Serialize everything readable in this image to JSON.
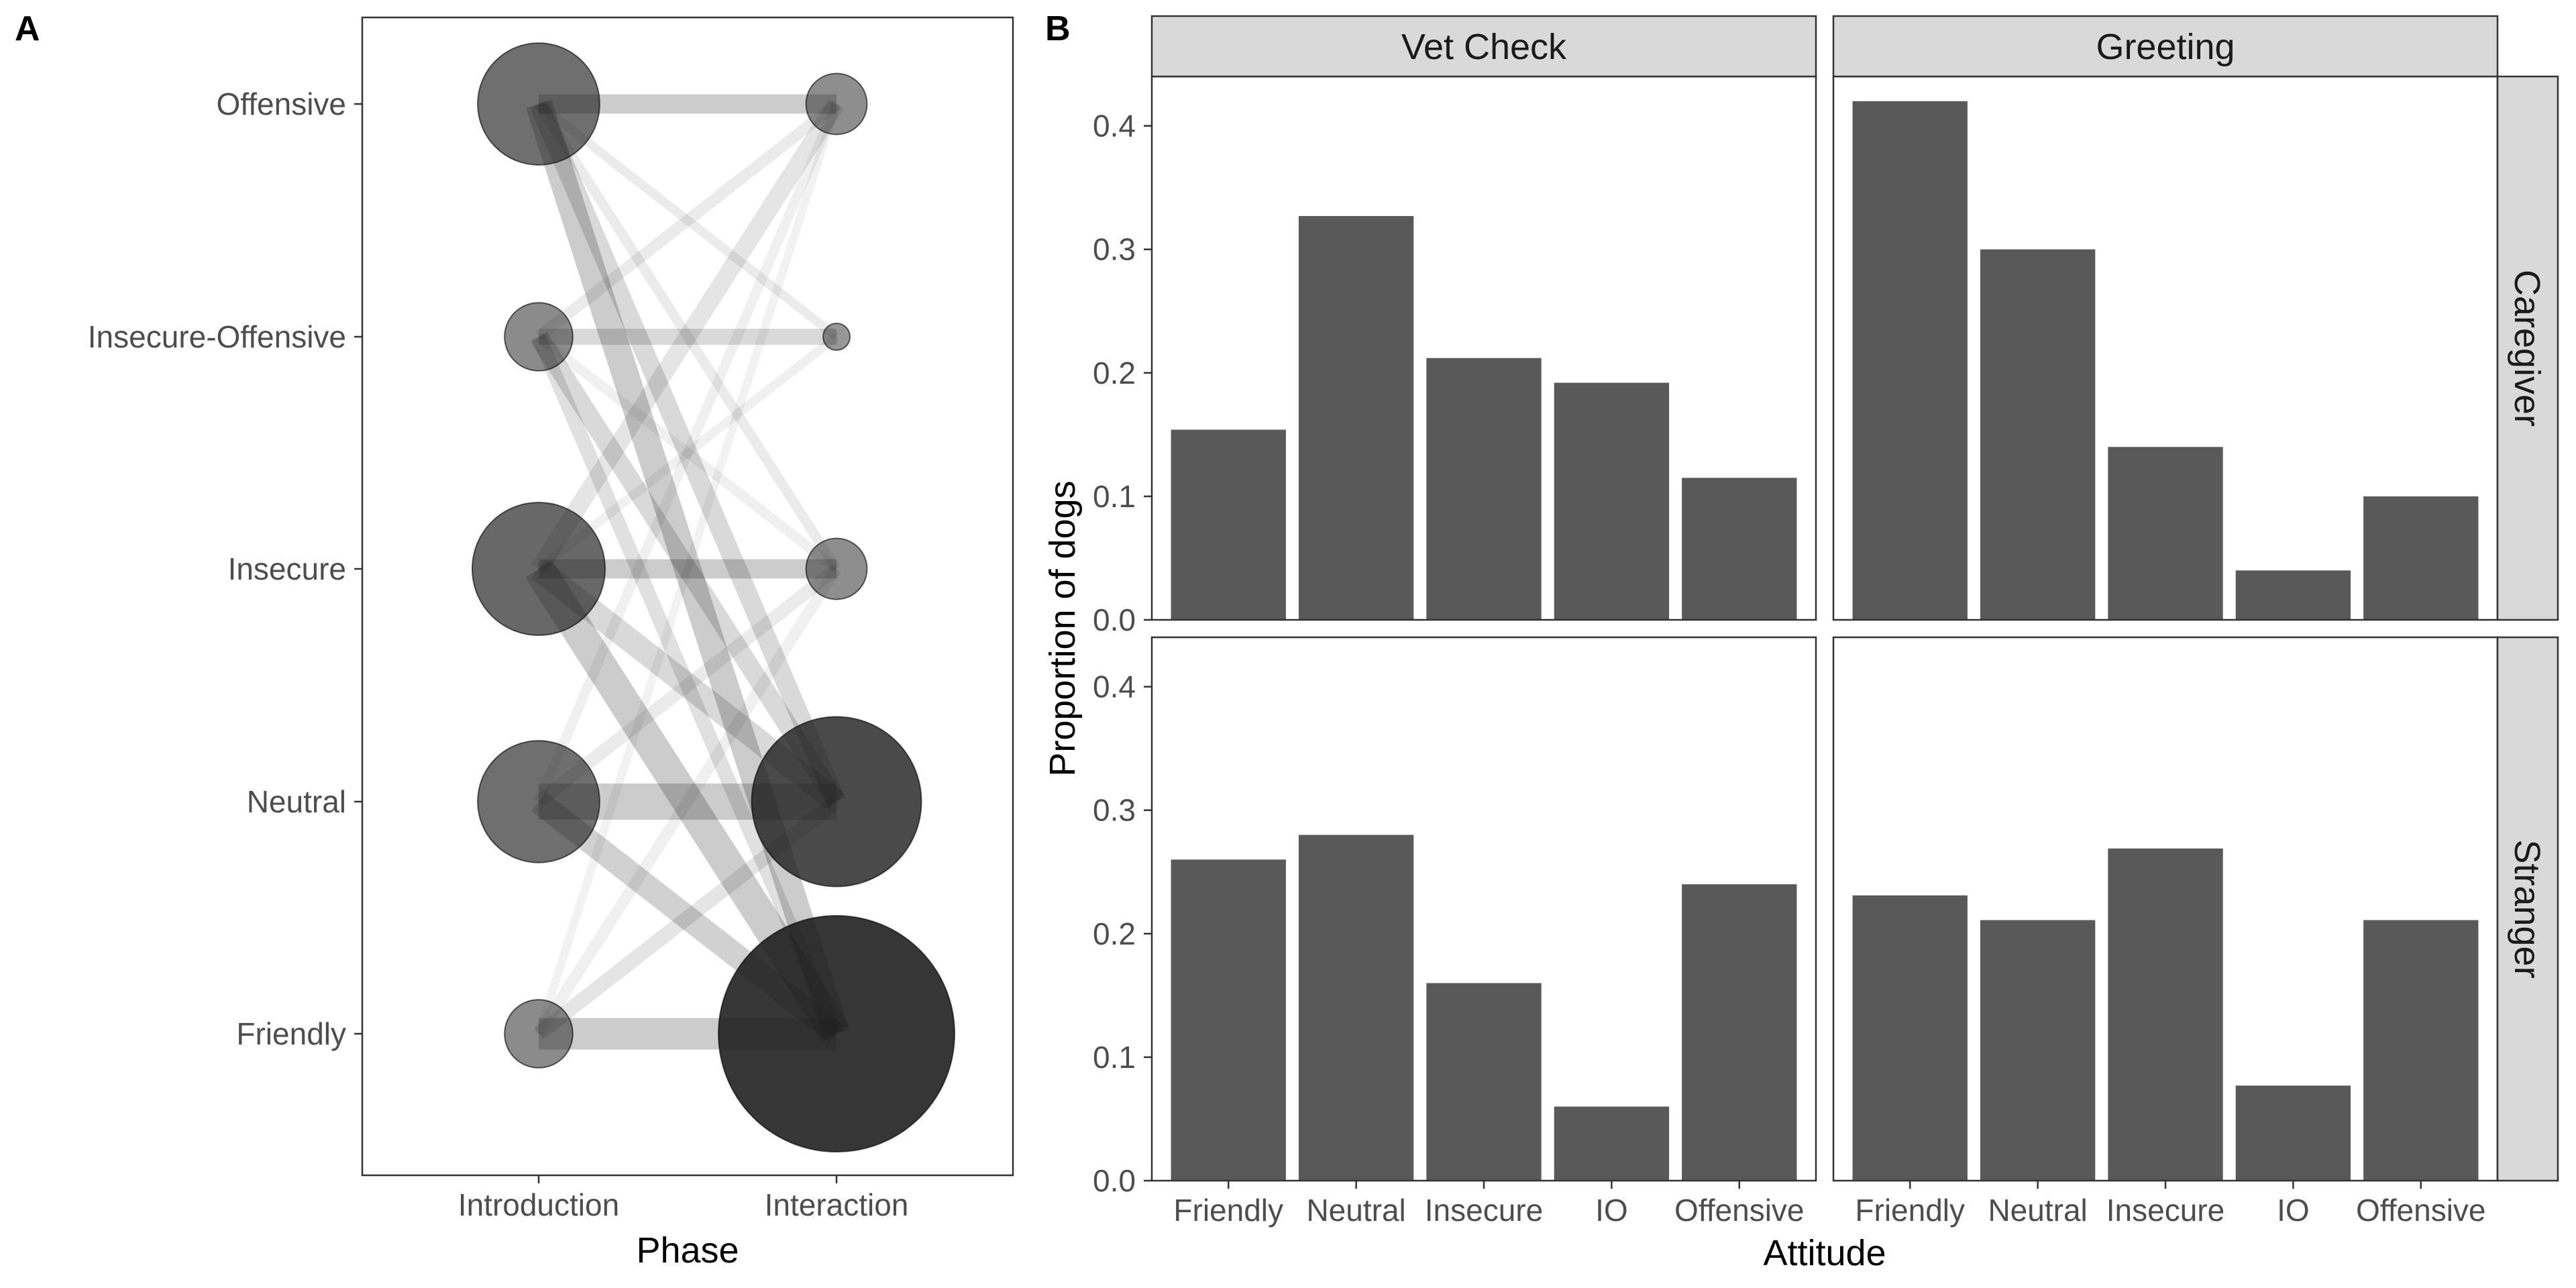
{
  "panel_tags": {
    "a": "A",
    "b": "B"
  },
  "chart_data": [
    {
      "id": "A",
      "type": "network",
      "xlabel": "Phase",
      "x_categories": [
        "Introduction",
        "Interaction"
      ],
      "y_categories": [
        "Friendly",
        "Neutral",
        "Insecure",
        "Insecure-Offensive",
        "Offensive"
      ],
      "nodes": {
        "Introduction": {
          "Offensive": 0.16,
          "Insecure-Offensive": 0.05,
          "Insecure": 0.19,
          "Neutral": 0.16,
          "Friendly": 0.05
        },
        "Interaction": {
          "Offensive": 0.04,
          "Insecure-Offensive": 0.006,
          "Insecure": 0.04,
          "Neutral": 0.31,
          "Friendly": 0.6
        }
      },
      "links": [
        {
          "from": "Offensive",
          "to": "Offensive",
          "weight": 0.45,
          "alpha": 0.2
        },
        {
          "from": "Offensive",
          "to": "Friendly",
          "weight": 0.7,
          "alpha": 0.2
        },
        {
          "from": "Offensive",
          "to": "Neutral",
          "weight": 0.45,
          "alpha": 0.15
        },
        {
          "from": "Offensive",
          "to": "Insecure",
          "weight": 0.15,
          "alpha": 0.08
        },
        {
          "from": "Offensive",
          "to": "Insecure-Offensive",
          "weight": 0.12,
          "alpha": 0.08
        },
        {
          "from": "Insecure-Offensive",
          "to": "Insecure-Offensive",
          "weight": 0.35,
          "alpha": 0.15
        },
        {
          "from": "Insecure-Offensive",
          "to": "Neutral",
          "weight": 0.45,
          "alpha": 0.15
        },
        {
          "from": "Insecure-Offensive",
          "to": "Friendly",
          "weight": 0.3,
          "alpha": 0.12
        },
        {
          "from": "Insecure-Offensive",
          "to": "Offensive",
          "weight": 0.2,
          "alpha": 0.08
        },
        {
          "from": "Insecure-Offensive",
          "to": "Insecure",
          "weight": 0.15,
          "alpha": 0.06
        },
        {
          "from": "Insecure",
          "to": "Insecure",
          "weight": 0.45,
          "alpha": 0.2
        },
        {
          "from": "Insecure",
          "to": "Friendly",
          "weight": 0.85,
          "alpha": 0.2
        },
        {
          "from": "Insecure",
          "to": "Neutral",
          "weight": 0.6,
          "alpha": 0.15
        },
        {
          "from": "Insecure",
          "to": "Offensive",
          "weight": 0.4,
          "alpha": 0.1
        },
        {
          "from": "Insecure",
          "to": "Insecure-Offensive",
          "weight": 0.12,
          "alpha": 0.06
        },
        {
          "from": "Neutral",
          "to": "Neutral",
          "weight": 1.0,
          "alpha": 0.2
        },
        {
          "from": "Neutral",
          "to": "Friendly",
          "weight": 0.6,
          "alpha": 0.18
        },
        {
          "from": "Neutral",
          "to": "Insecure",
          "weight": 0.25,
          "alpha": 0.08
        },
        {
          "from": "Neutral",
          "to": "Offensive",
          "weight": 0.15,
          "alpha": 0.06
        },
        {
          "from": "Friendly",
          "to": "Friendly",
          "weight": 0.85,
          "alpha": 0.2
        },
        {
          "from": "Friendly",
          "to": "Neutral",
          "weight": 0.3,
          "alpha": 0.1
        },
        {
          "from": "Friendly",
          "to": "Insecure",
          "weight": 0.2,
          "alpha": 0.06
        },
        {
          "from": "Friendly",
          "to": "Offensive",
          "weight": 0.1,
          "alpha": 0.05
        }
      ]
    },
    {
      "id": "B",
      "type": "bar",
      "xlabel": "Attitude",
      "ylabel": "Proportion of dogs",
      "categories": [
        "Friendly",
        "Neutral",
        "Insecure",
        "IO",
        "Offensive"
      ],
      "ylim": [
        0,
        0.44
      ],
      "yticks": [
        "0.0",
        "0.1",
        "0.2",
        "0.3",
        "0.4"
      ],
      "columns": [
        "Vet Check",
        "Greeting"
      ],
      "rows": [
        "Caregiver",
        "Stranger"
      ],
      "bar_color": "#595959",
      "strip_color": "#d9d9d9",
      "panels": [
        {
          "row": "Caregiver",
          "column": "Vet Check",
          "values": [
            0.154,
            0.327,
            0.212,
            0.192,
            0.115
          ]
        },
        {
          "row": "Caregiver",
          "column": "Greeting",
          "values": [
            0.42,
            0.3,
            0.14,
            0.04,
            0.1
          ]
        },
        {
          "row": "Stranger",
          "column": "Vet Check",
          "values": [
            0.26,
            0.28,
            0.16,
            0.06,
            0.24
          ]
        },
        {
          "row": "Stranger",
          "column": "Greeting",
          "values": [
            0.231,
            0.211,
            0.269,
            0.077,
            0.211
          ]
        }
      ]
    }
  ]
}
